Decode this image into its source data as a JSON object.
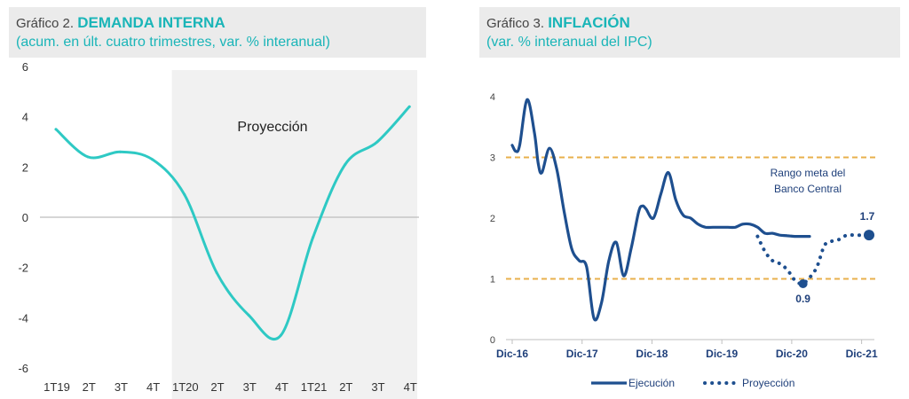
{
  "chart1": {
    "title_prefix": "Gráfico 2.",
    "title_main": "DEMANDA INTERNA",
    "subtitle": "(acum. en últ. cuatro trimestres, var. % interanual)"
  },
  "chart2": {
    "title_prefix": "Gráfico 3.",
    "title_main": "INFLACIÓN",
    "subtitle": "(var. % interanual del IPC)"
  },
  "colors": {
    "teal": "#2ec9c4",
    "navy": "#1e4f8f",
    "target_band": "#e8b04c",
    "projection_shade": "#f1f1f1"
  },
  "chart_data": [
    {
      "type": "line",
      "categories": [
        "1T19",
        "2T",
        "3T",
        "4T",
        "1T20",
        "2T",
        "3T",
        "4T",
        "1T21",
        "2T",
        "3T",
        "4T"
      ],
      "yticks": [
        "6",
        "4",
        "2",
        "0",
        "-2",
        "-4",
        "-6"
      ],
      "ylim": [
        -6,
        6
      ],
      "grid": false,
      "projection_label": "Proyección",
      "projection_start_index": 4,
      "series": [
        {
          "values": [
            3.5,
            2.4,
            2.6,
            2.3,
            0.9,
            -2.2,
            -3.9,
            -4.7,
            -0.8,
            2.1,
            3.0,
            4.4
          ]
        }
      ]
    },
    {
      "type": "line",
      "x_tick_labels": [
        "Dic-16",
        "Dic-17",
        "Dic-18",
        "Dic-19",
        "Dic-20",
        "Dic-21"
      ],
      "yticks": [
        "4",
        "3",
        "2",
        "1",
        "0"
      ],
      "ylim": [
        0,
        4
      ],
      "grid": false,
      "target_band": [
        1,
        3
      ],
      "target_label_line1": "Rango meta del",
      "target_label_line2": "Banco Central",
      "label_end": "1.7",
      "label_min": "0.9",
      "legend_position": "bottom",
      "series": [
        {
          "name": "Ejecución",
          "x": [
            0,
            0.5,
            1,
            2,
            3,
            3.5,
            4,
            5,
            6,
            7,
            8,
            9,
            10,
            11,
            12,
            13,
            14,
            15,
            16,
            17,
            17.5,
            18,
            19,
            20,
            21,
            22,
            23,
            24,
            25,
            26,
            27,
            28,
            29,
            30,
            31,
            32,
            33,
            34,
            35,
            36,
            37,
            38,
            39,
            40
          ],
          "y": [
            3.2,
            3.1,
            3.2,
            3.95,
            3.4,
            2.9,
            2.75,
            3.15,
            2.8,
            2.1,
            1.5,
            1.3,
            1.2,
            0.35,
            0.6,
            1.3,
            1.6,
            1.05,
            1.5,
            2.1,
            2.2,
            2.15,
            2.0,
            2.4,
            2.75,
            2.3,
            2.05,
            2.0,
            1.9,
            1.85,
            1.85,
            1.85,
            1.85,
            1.85,
            1.9,
            1.9,
            1.85,
            1.75,
            1.75,
            1.72,
            1.71,
            1.7,
            1.7,
            1.7
          ]
        },
        {
          "name": "Proyección",
          "x": [
            33,
            34,
            35,
            36,
            37,
            38,
            39,
            40,
            41,
            42,
            43,
            44,
            45,
            46,
            47,
            48
          ],
          "y": [
            1.7,
            1.45,
            1.3,
            1.25,
            1.15,
            0.98,
            0.92,
            1.02,
            1.2,
            1.55,
            1.62,
            1.65,
            1.72,
            1.72,
            1.72,
            1.72
          ]
        }
      ]
    }
  ],
  "legend": {
    "ejecucion": "Ejecución",
    "proyeccion": "Proyección"
  }
}
